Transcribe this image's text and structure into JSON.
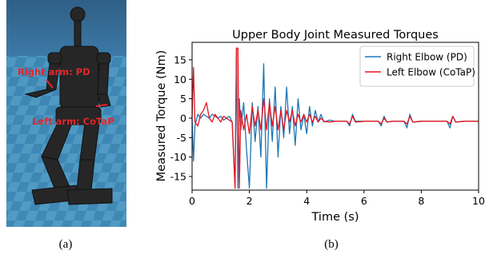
{
  "panel_a": {
    "annotations": [
      "Right arm: PD",
      "Left arm: CoTaP"
    ],
    "caption": "(a)"
  },
  "caption_b": "(b)",
  "chart_data": {
    "type": "line",
    "title": "Upper Body Joint Measured Torques",
    "x_label": "Time (s)",
    "y_label": "Measured Torque (Nm)",
    "x": [
      0,
      0.05,
      0.1,
      0.2,
      0.3,
      0.4,
      0.5,
      0.6,
      0.7,
      0.8,
      0.9,
      1.0,
      1.1,
      1.2,
      1.3,
      1.4,
      1.5,
      1.55,
      1.6,
      1.65,
      1.7,
      1.8,
      1.9,
      2.0,
      2.1,
      2.2,
      2.3,
      2.4,
      2.5,
      2.6,
      2.7,
      2.8,
      2.9,
      3.0,
      3.1,
      3.2,
      3.3,
      3.4,
      3.5,
      3.6,
      3.7,
      3.8,
      3.9,
      4.0,
      4.1,
      4.2,
      4.3,
      4.4,
      4.5,
      4.6,
      4.8,
      5.0,
      5.4,
      5.5,
      5.6,
      5.7,
      6.0,
      6.5,
      6.6,
      6.7,
      6.8,
      7.0,
      7.4,
      7.5,
      7.6,
      7.7,
      8.0,
      8.5,
      8.9,
      9.0,
      9.1,
      9.2,
      9.5,
      10.0
    ],
    "series": [
      {
        "name": "Right Elbow (PD)",
        "color": "#1f77b4",
        "values": [
          0,
          -11,
          -2,
          1,
          0,
          1,
          0.5,
          0,
          1,
          0.5,
          0,
          0.5,
          -0.5,
          0,
          0.5,
          -1,
          -18,
          18,
          -18,
          5,
          -3,
          4,
          -8,
          -18,
          4,
          -6,
          3,
          -10,
          14,
          -18,
          5,
          -6,
          8,
          -10,
          3,
          -5,
          8,
          -4,
          3,
          -7,
          5,
          -3,
          1,
          -4,
          3,
          -2,
          2,
          -1,
          1,
          -1,
          -0.5,
          -0.8,
          -0.8,
          -2,
          1,
          -0.8,
          -0.8,
          -0.8,
          -2,
          0.5,
          -1,
          -0.8,
          -0.8,
          -2.5,
          1,
          -1,
          -0.8,
          -0.8,
          -0.8,
          -2.5,
          0.5,
          -1,
          -0.8,
          -0.8
        ]
      },
      {
        "name": "Left Elbow (CoTaP)",
        "color": "#e8141e",
        "values": [
          0,
          13,
          -1,
          -2,
          1,
          2,
          4,
          0,
          -1,
          1,
          0,
          -1,
          0.5,
          0,
          -0.5,
          -1,
          -18,
          18,
          18,
          -18,
          2,
          -3,
          1,
          -4,
          3,
          -2,
          2,
          -3,
          5,
          -3,
          4,
          -2,
          3,
          -3,
          2,
          -3,
          2,
          -1,
          2,
          -2,
          1,
          -1,
          1,
          -1,
          1,
          -1,
          0.5,
          -1,
          0,
          -0.8,
          -1,
          -0.8,
          -0.8,
          -1.5,
          0.5,
          -1,
          -0.8,
          -0.8,
          -1.5,
          0,
          -1,
          -0.8,
          -0.8,
          -1.5,
          0.5,
          -1,
          -0.8,
          -0.8,
          -0.8,
          -1.5,
          0.5,
          -1,
          -0.8,
          -0.8
        ]
      }
    ],
    "xlim": [
      0,
      10
    ],
    "ylim": [
      -18.5,
      19.5
    ],
    "xticks": [
      0,
      2,
      4,
      6,
      8,
      10
    ],
    "yticks": [
      -15,
      -10,
      -5,
      0,
      5,
      10,
      15
    ],
    "grid": false,
    "legend": "upper right"
  }
}
